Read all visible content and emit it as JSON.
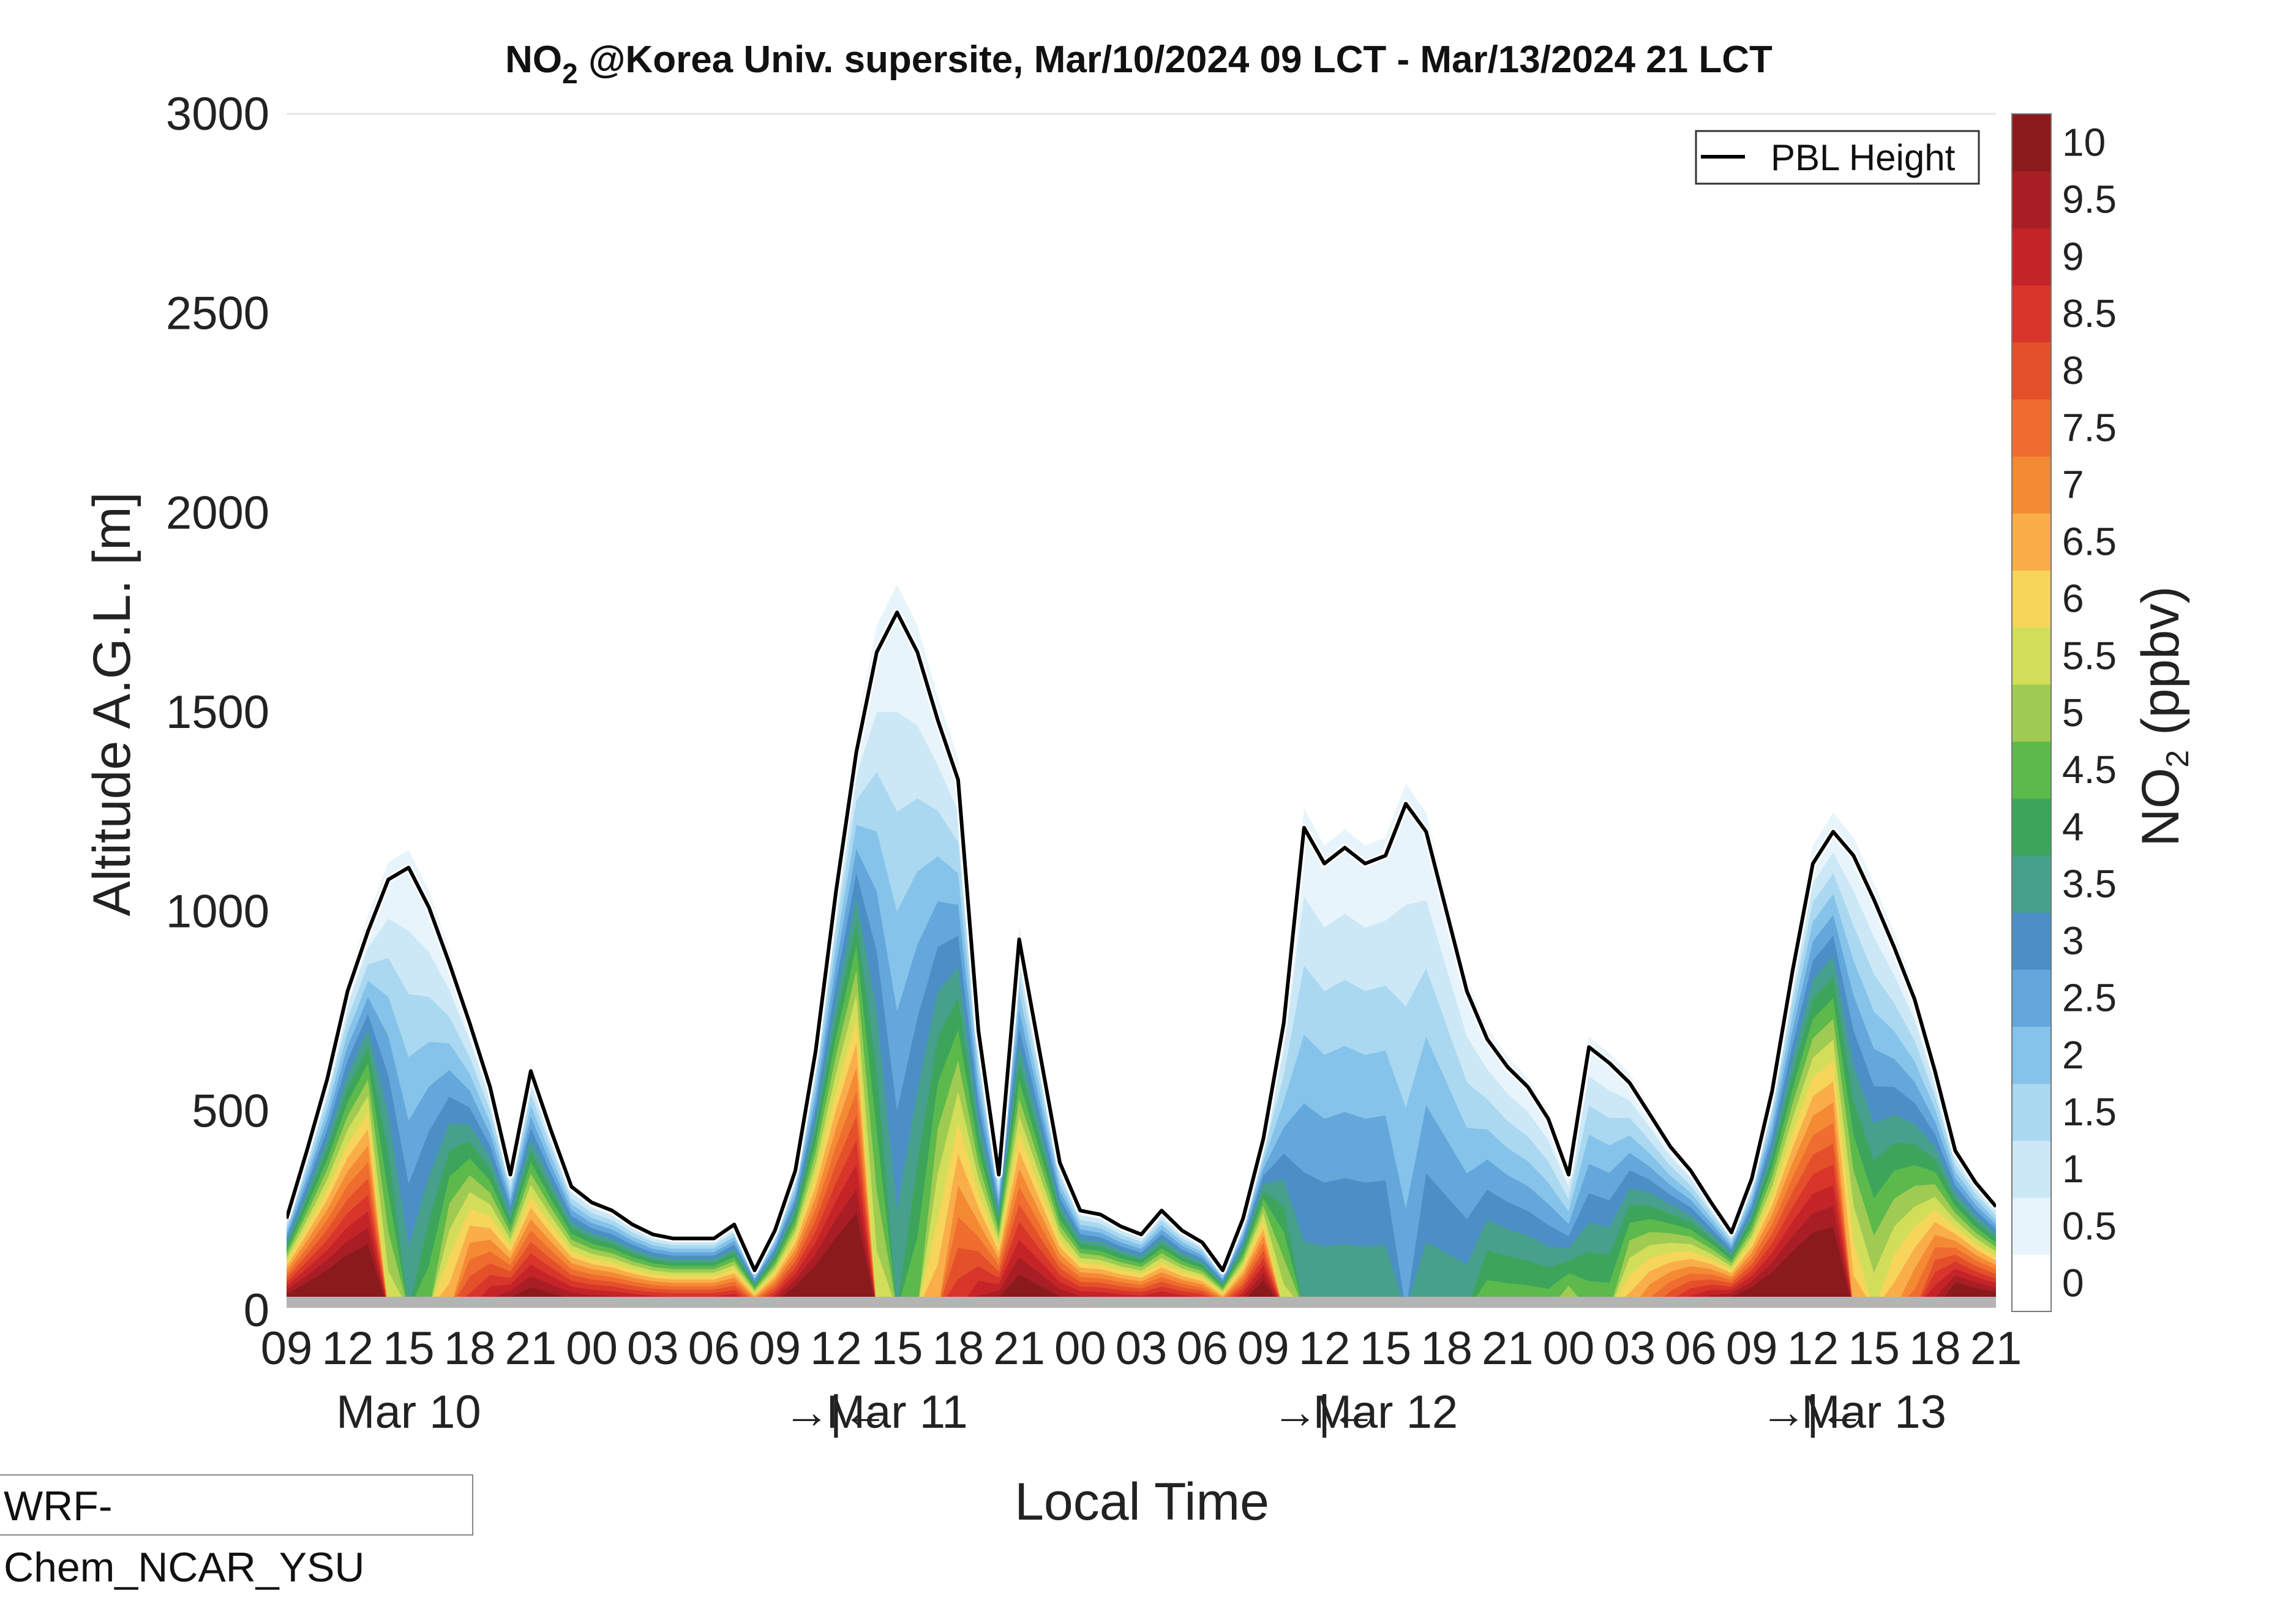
{
  "chart_data": {
    "type": "area",
    "title": {
      "prefix": "NO",
      "subscript": "2",
      "rest": " @Korea Univ. supersite, Mar/10/2024 09 LCT - Mar/13/2024 21 LCT"
    },
    "xlabel": "Local Time",
    "ylabel": "Altitude A.G.L. [m]",
    "ylim": [
      0,
      3000
    ],
    "yticks": [
      "0",
      "500",
      "1000",
      "1500",
      "2000",
      "2500",
      "3000"
    ],
    "x_hour_ticks": [
      "09",
      "12",
      "15",
      "18",
      "21",
      "00",
      "03",
      "06",
      "09",
      "12",
      "15",
      "18",
      "21",
      "00",
      "03",
      "06",
      "09",
      "12",
      "15",
      "18",
      "21",
      "00",
      "03",
      "06",
      "09",
      "12",
      "15",
      "18",
      "21"
    ],
    "day_labels": [
      {
        "text": "Mar 10",
        "hour": 6
      },
      {
        "text": "→|←",
        "hour": 27
      },
      {
        "text": "Mar 11",
        "hour": 30
      },
      {
        "text": "→|←",
        "hour": 51
      },
      {
        "text": "Mar 12",
        "hour": 54
      },
      {
        "text": "→|←",
        "hour": 75
      },
      {
        "text": "Mar 13",
        "hour": 78
      }
    ],
    "x_hours_since_start_range": [
      0,
      84
    ],
    "colorbar": {
      "label_prefix": "NO",
      "label_subscript": "2",
      "label_rest": " (ppbv)",
      "ticks": [
        "0",
        "0.5",
        "1",
        "1.5",
        "2",
        "2.5",
        "3",
        "3.5",
        "4",
        "4.5",
        "5",
        "5.5",
        "6",
        "6.5",
        "7",
        "7.5",
        "8",
        "8.5",
        "9",
        "9.5",
        "10"
      ],
      "levels": [
        0,
        0.5,
        1,
        1.5,
        2,
        2.5,
        3,
        3.5,
        4,
        4.5,
        5,
        5.5,
        6,
        6.5,
        7,
        7.5,
        8,
        8.5,
        9,
        9.5,
        10
      ],
      "colors": [
        "#ffffff",
        "#e8f4fb",
        "#cce8f6",
        "#aad8f0",
        "#86c3ea",
        "#63a7db",
        "#4b8fc6",
        "#47a08c",
        "#3ca55b",
        "#5cb94c",
        "#9fcb52",
        "#d2de5a",
        "#f6d55a",
        "#f9ae4a",
        "#f58a34",
        "#ee6d2f",
        "#e4502a",
        "#d8352b",
        "#c42428",
        "#a81e24",
        "#8b1a1c"
      ]
    },
    "legend": {
      "entries": [
        "PBL Height"
      ],
      "placement": "top-right"
    },
    "pbl_height": {
      "hours": [
        0,
        1,
        2,
        3,
        4,
        5,
        6,
        7,
        8,
        9,
        10,
        11,
        12,
        13,
        14,
        15,
        16,
        17,
        18,
        19,
        20,
        21,
        22,
        23,
        24,
        25,
        26,
        27,
        28,
        29,
        30,
        31,
        32,
        33,
        34,
        35,
        36,
        37,
        38,
        39,
        40,
        41,
        42,
        43,
        44,
        45,
        46,
        47,
        48,
        49,
        50,
        51,
        52,
        53,
        54,
        55,
        56,
        57,
        58,
        59,
        60,
        61,
        62,
        63,
        64,
        65,
        66,
        67,
        68,
        69,
        70,
        71,
        72,
        73,
        74,
        75,
        76,
        77,
        78,
        79,
        80,
        81,
        82,
        83,
        84
      ],
      "values": [
        230,
        400,
        580,
        800,
        950,
        1080,
        1110,
        1010,
        870,
        720,
        560,
        340,
        600,
        450,
        310,
        270,
        250,
        215,
        190,
        180,
        180,
        180,
        215,
        100,
        200,
        350,
        650,
        1050,
        1400,
        1650,
        1750,
        1650,
        1480,
        1330,
        700,
        340,
        930,
        650,
        370,
        250,
        240,
        210,
        190,
        250,
        200,
        170,
        100,
        230,
        430,
        720,
        1210,
        1120,
        1160,
        1120,
        1140,
        1270,
        1200,
        1000,
        800,
        680,
        610,
        560,
        480,
        340,
        660,
        620,
        570,
        490,
        410,
        350,
        270,
        195,
        330,
        550,
        850,
        1120,
        1200,
        1140,
        1030,
        910,
        780,
        600,
        400,
        320,
        260
      ]
    },
    "no2_surface_ppbv": [
      12,
      12,
      12,
      12,
      12,
      6,
      4,
      5,
      7,
      9,
      10,
      11,
      11,
      11,
      11,
      11,
      11,
      11,
      11,
      11,
      11,
      11,
      11,
      10,
      11,
      12,
      12,
      12,
      12,
      6,
      4,
      5,
      7,
      9,
      10,
      11,
      11,
      11,
      11,
      11,
      11,
      11,
      11,
      11,
      11,
      11,
      10,
      11,
      12,
      6,
      4,
      4,
      4,
      4,
      4,
      3,
      4,
      4,
      4,
      5,
      5,
      5,
      5,
      6,
      5,
      5,
      7,
      8,
      9,
      10,
      11,
      12,
      12,
      12,
      12,
      12,
      12,
      7,
      6,
      7,
      8,
      10,
      12,
      12,
      12
    ],
    "no2_bottom_ppbv": 10,
    "no2_top_ppbv": 0.5
  },
  "model_label": "WRF-Chem_NCAR_YSU"
}
